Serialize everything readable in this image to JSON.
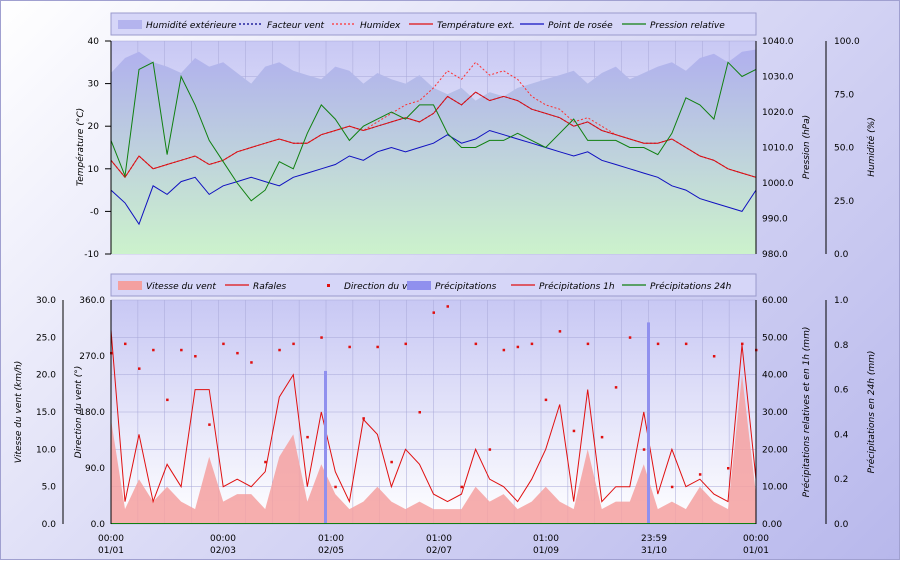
{
  "chart_data": [
    {
      "type": "line",
      "title": "",
      "legend": [
        "Humidité extérieure",
        "Facteur vent",
        "Humidex",
        "Température ext.",
        "Point de rosée",
        "Pression relative"
      ],
      "ylabel_left": "Température (°C)",
      "ylabel_pressure": "Pression (hPa)",
      "ylabel_humidity": "Humidité (%)",
      "ylim": [
        -10,
        40
      ],
      "y_ticks": [
        "-10",
        "-0",
        "10",
        "20",
        "30",
        "40"
      ],
      "pressure_ticks": [
        "980.0",
        "990.0",
        "1000.0",
        "1010.0",
        "1020.0",
        "1030.0",
        "1040.0"
      ],
      "humidity_ticks": [
        "0.0",
        "25.0",
        "50.0",
        "75.0",
        "100.0"
      ],
      "colors": {
        "humidity": "#b4b4ee",
        "wind_chill": "#00008b",
        "humidex": "#ff3030",
        "temperature": "#e01010",
        "dew_point": "#1010c0",
        "pressure": "#108010"
      },
      "series": [
        {
          "name": "Température ext.",
          "values": [
            12,
            8,
            13,
            10,
            11,
            12,
            13,
            11,
            12,
            14,
            15,
            16,
            17,
            16,
            16,
            18,
            19,
            20,
            19,
            20,
            21,
            22,
            21,
            23,
            27,
            25,
            28,
            26,
            27,
            26,
            24,
            23,
            22,
            20,
            21,
            19,
            18,
            17,
            16,
            16,
            17,
            15,
            13,
            12,
            10,
            9,
            8
          ]
        },
        {
          "name": "Humidex",
          "values": [
            12,
            8,
            13,
            10,
            11,
            12,
            13,
            11,
            12,
            14,
            15,
            16,
            17,
            16,
            16,
            18,
            19,
            20,
            19,
            21,
            23,
            25,
            26,
            29,
            33,
            31,
            35,
            32,
            33,
            31,
            27,
            25,
            24,
            21,
            22,
            20,
            18,
            17,
            16,
            16,
            17,
            15,
            13,
            12,
            10,
            9,
            8
          ]
        },
        {
          "name": "Point de rosée",
          "values": [
            5,
            2,
            -3,
            6,
            4,
            7,
            8,
            4,
            6,
            7,
            8,
            7,
            6,
            8,
            9,
            10,
            11,
            13,
            12,
            14,
            15,
            14,
            15,
            16,
            18,
            16,
            17,
            19,
            18,
            17,
            16,
            15,
            14,
            13,
            14,
            12,
            11,
            10,
            9,
            8,
            6,
            5,
            3,
            2,
            1,
            0,
            5
          ]
        },
        {
          "name": "Pression relative",
          "values": [
            1012,
            1002,
            1032,
            1034,
            1008,
            1030,
            1022,
            1012,
            1006,
            1000,
            995,
            998,
            1006,
            1004,
            1014,
            1022,
            1018,
            1012,
            1016,
            1018,
            1020,
            1018,
            1022,
            1022,
            1014,
            1010,
            1010,
            1012,
            1012,
            1014,
            1012,
            1010,
            1014,
            1018,
            1012,
            1012,
            1012,
            1010,
            1010,
            1008,
            1014,
            1024,
            1022,
            1018,
            1034,
            1030,
            1032
          ]
        },
        {
          "name": "Humidité extérieure",
          "values": [
            85,
            92,
            95,
            90,
            88,
            85,
            92,
            88,
            90,
            85,
            80,
            88,
            90,
            86,
            84,
            82,
            88,
            86,
            80,
            85,
            82,
            80,
            84,
            78,
            75,
            78,
            72,
            76,
            74,
            78,
            80,
            82,
            84,
            86,
            80,
            85,
            88,
            82,
            85,
            88,
            90,
            86,
            92,
            94,
            90,
            95,
            96
          ]
        }
      ],
      "x_tick_labels": [
        [
          "00:00",
          "01/01"
        ],
        [
          "00:00",
          "02/03"
        ],
        [
          "01:00",
          "02/05"
        ],
        [
          "01:00",
          "02/07"
        ],
        [
          "01:00",
          "01/09"
        ],
        [
          "23:59",
          "31/10"
        ],
        [
          "00:00",
          "01/01"
        ]
      ]
    },
    {
      "type": "bar",
      "title": "",
      "legend": [
        "Vitesse du vent",
        "Rafales",
        "Direction du vent",
        "Précipitations",
        "Précipitations 1h",
        "Précipitations 24h"
      ],
      "ylabel_speed": "Vitesse du vent (km/h)",
      "ylabel_direction": "Direction du vent (°)",
      "ylabel_rain": "Précipitations relatives et en 1h (mm)",
      "ylabel_rain24": "Précipitations en 24h (mm)",
      "speed_ticks": [
        "0.0",
        "5.0",
        "10.0",
        "15.0",
        "20.0",
        "25.0",
        "30.0"
      ],
      "direction_ticks": [
        "0.0",
        "90.0",
        "180.0",
        "270.0",
        "360.0"
      ],
      "rain_ticks": [
        "0.00",
        "10.00",
        "20.00",
        "30.00",
        "40.00",
        "50.00",
        "60.00"
      ],
      "rain24_ticks": [
        "0.0",
        "0.2",
        "0.4",
        "0.6",
        "0.8",
        "1.0"
      ],
      "ylim_speed": [
        0,
        30
      ],
      "ylim_direction": [
        0,
        360
      ],
      "ylim_rain": [
        0,
        60
      ],
      "colors": {
        "wind": "#f4a0a0",
        "gusts": "#e01010",
        "direction": "#e01010",
        "rain": "#9090ee",
        "rain_1h": "#e01010",
        "rain_24h": "#108010"
      },
      "series": [
        {
          "name": "Vitesse du vent",
          "values": [
            14,
            2,
            6,
            3,
            5,
            3,
            2,
            9,
            3,
            4,
            4,
            2,
            9,
            12,
            3,
            8,
            4,
            2,
            3,
            5,
            3,
            2,
            3,
            2,
            2,
            2,
            5,
            3,
            4,
            2,
            3,
            5,
            3,
            2,
            10,
            2,
            3,
            3,
            8,
            2,
            3,
            2,
            5,
            3,
            2,
            20,
            4
          ]
        },
        {
          "name": "Rafales",
          "values": [
            26,
            3,
            12,
            3,
            8,
            5,
            18,
            18,
            5,
            6,
            5,
            7,
            17,
            20,
            5,
            15,
            7,
            3,
            14,
            12,
            5,
            10,
            8,
            4,
            3,
            4,
            10,
            6,
            5,
            3,
            6,
            10,
            16,
            3,
            18,
            3,
            5,
            5,
            15,
            4,
            10,
            5,
            6,
            4,
            3,
            24,
            6
          ]
        },
        {
          "name": "Direction du vent",
          "values": [
            275,
            290,
            250,
            280,
            200,
            280,
            270,
            160,
            290,
            275,
            260,
            100,
            280,
            290,
            140,
            300,
            60,
            285,
            170,
            285,
            100,
            290,
            180,
            340,
            350,
            60,
            290,
            120,
            280,
            285,
            290,
            200,
            310,
            150,
            290,
            140,
            220,
            300,
            120,
            290,
            60,
            290,
            80,
            270,
            90,
            290,
            280
          ]
        },
        {
          "name": "Précipitations",
          "values": [
            0,
            0,
            0,
            0,
            0,
            0,
            0,
            0,
            0,
            0,
            0,
            0,
            0,
            0,
            0,
            0,
            0,
            0,
            0,
            0,
            0,
            0,
            0,
            0,
            0,
            0,
            0,
            0,
            0,
            0,
            0,
            0,
            0,
            0,
            0,
            0,
            0,
            0,
            0,
            0,
            0,
            0,
            0,
            0,
            0,
            0,
            0
          ]
        }
      ],
      "rain_spikes": [
        {
          "label": "02/05",
          "value": 41
        },
        {
          "label": "31/10",
          "value": 54
        }
      ],
      "x_tick_labels": [
        [
          "00:00",
          "01/01"
        ],
        [
          "00:00",
          "02/03"
        ],
        [
          "01:00",
          "02/05"
        ],
        [
          "01:00",
          "02/07"
        ],
        [
          "01:00",
          "01/09"
        ],
        [
          "23:59",
          "31/10"
        ],
        [
          "00:00",
          "01/01"
        ]
      ]
    }
  ]
}
